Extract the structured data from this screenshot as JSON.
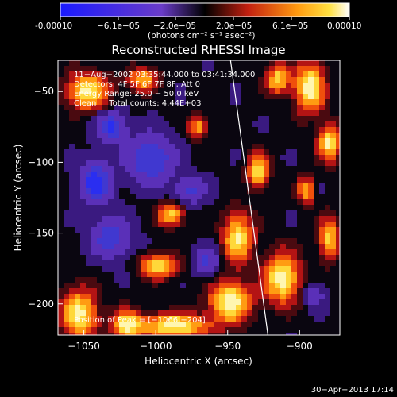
{
  "colorbar": {
    "ticks": [
      "-0.00010",
      "−6.1e−05",
      "−2.0e−05",
      "2.0e−05",
      "6.1e−05",
      "0.00010"
    ],
    "units": "(photons cm⁻² s⁻¹ asec⁻²)"
  },
  "plot": {
    "title": "Reconstructed RHESSI Image",
    "xlabel": "Heliocentric X (arcsec)",
    "ylabel": "Heliocentric Y (arcsec)"
  },
  "info": {
    "line1": "11−Aug−2002 03:35:44.000 to 03:41:34.000",
    "line2": "Detectors: 4F 5F 6F 7F 8F, Att 0",
    "line3": "Energy Range: 25.0 − 50.0 keV",
    "line4": "Clean     Total counts: 4.44E+03",
    "peak": "Position of Peak = [−1066,−204]"
  },
  "footer": {
    "date": "30−Apr−2013 17:14"
  },
  "colors": {
    "bg": "#000000",
    "text": "#ffffff",
    "cmap_low": "#1a1aff",
    "cmap_mid": "#000000",
    "cmap_high": "#ffffff"
  },
  "chart_data": {
    "type": "heatmap",
    "title": "Reconstructed RHESSI Image",
    "xlabel": "Heliocentric X (arcsec)",
    "ylabel": "Heliocentric Y (arcsec)",
    "xlim": [
      -1068,
      -872
    ],
    "ylim": [
      -222,
      -28
    ],
    "xticks": [
      -1050,
      -1000,
      -950,
      -900
    ],
    "xtick_labels": [
      "−1050",
      "−1000",
      "−950",
      "−900"
    ],
    "yticks": [
      -200,
      -150,
      -100,
      -50
    ],
    "ytick_labels": [
      "−200",
      "−150",
      "−100",
      "−50"
    ],
    "zlim": [
      -0.0001,
      0.0001
    ],
    "limb_line": [
      [
        -948,
        -28
      ],
      [
        -922,
        -222
      ]
    ],
    "peak": [
      -1066,
      -204
    ]
  }
}
